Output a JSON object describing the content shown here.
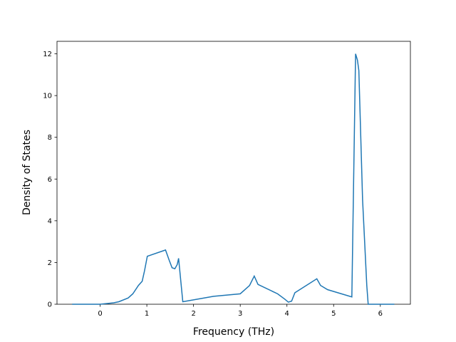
{
  "chart_data": {
    "type": "line",
    "x_label": "Frequency (THz)",
    "y_label": "Density of States",
    "x": [
      -0.6,
      0,
      0.29,
      0.4,
      0.6,
      0.7,
      0.82,
      0.9,
      0.95,
      1.01,
      1.4,
      1.48,
      1.54,
      1.6,
      1.65,
      1.68,
      1.77,
      2.43,
      3.0,
      3.2,
      3.3,
      3.38,
      3.8,
      3.95,
      4.03,
      4.1,
      4.17,
      4.64,
      4.72,
      4.87,
      5.39,
      5.47,
      5.51,
      5.54,
      5.62,
      5.71,
      5.74,
      6.3
    ],
    "series": [
      {
        "color": "#1f77b4",
        "values": [
          0,
          0,
          0.07,
          0.12,
          0.3,
          0.5,
          0.9,
          1.1,
          1.6,
          2.3,
          2.6,
          2.1,
          1.75,
          1.7,
          1.9,
          2.2,
          0.12,
          0.38,
          0.5,
          0.9,
          1.35,
          0.95,
          0.5,
          0.25,
          0.1,
          0.15,
          0.55,
          1.22,
          0.9,
          0.7,
          0.35,
          12.0,
          11.7,
          11.2,
          5.0,
          0.9,
          0,
          0
        ]
      }
    ],
    "xlim": [
      -0.924,
      6.644
    ],
    "ylim": [
      0,
      12.6
    ],
    "xticks": [
      0,
      1,
      2,
      3,
      4,
      5,
      6
    ],
    "yticks": [
      0,
      2,
      4,
      6,
      8,
      10,
      12
    ]
  }
}
